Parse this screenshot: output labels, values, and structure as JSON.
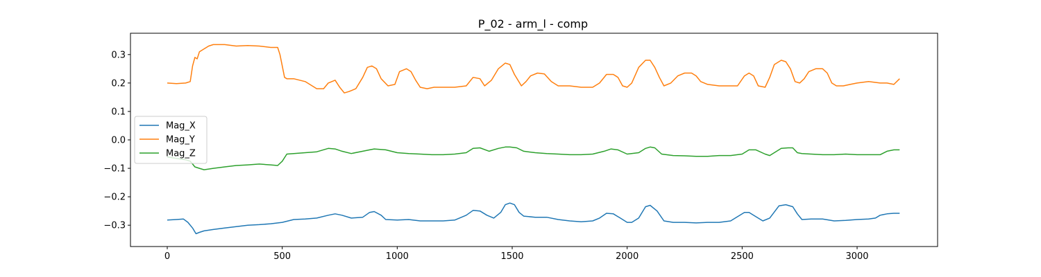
{
  "chart_data": {
    "type": "line",
    "title": "P_02 - arm_l - comp",
    "xlabel": "",
    "ylabel": "",
    "xlim": [
      -160,
      3350
    ],
    "ylim": [
      -0.375,
      0.375
    ],
    "x_ticks": [
      0,
      500,
      1000,
      1500,
      2000,
      2500,
      3000
    ],
    "x_tick_labels": [
      "0",
      "500",
      "1000",
      "1500",
      "2000",
      "2500",
      "3000"
    ],
    "y_ticks": [
      -0.3,
      -0.2,
      -0.1,
      0.0,
      0.1,
      0.2,
      0.3
    ],
    "y_tick_labels": [
      "−0.3",
      "−0.2",
      "−0.1",
      "0.0",
      "0.1",
      "0.2",
      "0.3"
    ],
    "grid": false,
    "legend_position": "center-left",
    "series": [
      {
        "name": "Mag_X",
        "color": "#1f77b4",
        "x": [
          0,
          40,
          70,
          90,
          110,
          125,
          140,
          160,
          200,
          250,
          300,
          350,
          400,
          450,
          500,
          550,
          600,
          650,
          700,
          730,
          760,
          800,
          850,
          880,
          900,
          930,
          950,
          1000,
          1050,
          1100,
          1150,
          1200,
          1250,
          1300,
          1330,
          1360,
          1390,
          1420,
          1450,
          1470,
          1490,
          1510,
          1530,
          1550,
          1600,
          1650,
          1700,
          1750,
          1800,
          1850,
          1880,
          1910,
          1940,
          1970,
          2000,
          2020,
          2050,
          2080,
          2100,
          2130,
          2160,
          2200,
          2250,
          2300,
          2350,
          2400,
          2450,
          2480,
          2510,
          2530,
          2560,
          2590,
          2620,
          2660,
          2690,
          2720,
          2740,
          2760,
          2800,
          2850,
          2900,
          2950,
          3000,
          3050,
          3080,
          3100,
          3130,
          3160,
          3185
        ],
        "y": [
          -0.282,
          -0.28,
          -0.278,
          -0.29,
          -0.31,
          -0.33,
          -0.325,
          -0.32,
          -0.315,
          -0.31,
          -0.305,
          -0.3,
          -0.298,
          -0.295,
          -0.29,
          -0.28,
          -0.278,
          -0.275,
          -0.265,
          -0.26,
          -0.265,
          -0.275,
          -0.272,
          -0.255,
          -0.252,
          -0.265,
          -0.28,
          -0.282,
          -0.28,
          -0.285,
          -0.285,
          -0.285,
          -0.282,
          -0.265,
          -0.248,
          -0.25,
          -0.265,
          -0.275,
          -0.255,
          -0.228,
          -0.222,
          -0.228,
          -0.255,
          -0.268,
          -0.272,
          -0.272,
          -0.28,
          -0.285,
          -0.288,
          -0.285,
          -0.275,
          -0.258,
          -0.26,
          -0.275,
          -0.29,
          -0.29,
          -0.275,
          -0.235,
          -0.23,
          -0.25,
          -0.285,
          -0.29,
          -0.29,
          -0.292,
          -0.29,
          -0.29,
          -0.285,
          -0.27,
          -0.255,
          -0.255,
          -0.27,
          -0.285,
          -0.275,
          -0.232,
          -0.228,
          -0.235,
          -0.26,
          -0.28,
          -0.278,
          -0.278,
          -0.285,
          -0.283,
          -0.28,
          -0.278,
          -0.275,
          -0.265,
          -0.26,
          -0.258,
          -0.258
        ]
      },
      {
        "name": "Mag_Y",
        "color": "#ff7f0e",
        "x": [
          0,
          40,
          80,
          100,
          110,
          120,
          130,
          140,
          160,
          180,
          200,
          250,
          300,
          350,
          400,
          450,
          480,
          490,
          500,
          510,
          520,
          550,
          600,
          650,
          680,
          700,
          730,
          750,
          770,
          790,
          820,
          850,
          870,
          890,
          910,
          930,
          960,
          990,
          1010,
          1040,
          1060,
          1080,
          1100,
          1130,
          1160,
          1200,
          1250,
          1300,
          1330,
          1360,
          1380,
          1410,
          1440,
          1470,
          1490,
          1510,
          1540,
          1560,
          1580,
          1610,
          1640,
          1670,
          1700,
          1750,
          1800,
          1850,
          1880,
          1910,
          1940,
          1960,
          1980,
          2000,
          2020,
          2050,
          2080,
          2100,
          2120,
          2140,
          2160,
          2190,
          2220,
          2250,
          2280,
          2300,
          2320,
          2350,
          2400,
          2450,
          2480,
          2510,
          2530,
          2550,
          2570,
          2600,
          2620,
          2640,
          2670,
          2690,
          2710,
          2730,
          2750,
          2770,
          2790,
          2820,
          2850,
          2870,
          2890,
          2910,
          2940,
          2970,
          3000,
          3050,
          3100,
          3130,
          3160,
          3185
        ],
        "y": [
          0.2,
          0.198,
          0.2,
          0.205,
          0.26,
          0.29,
          0.285,
          0.31,
          0.32,
          0.33,
          0.335,
          0.335,
          0.33,
          0.332,
          0.33,
          0.325,
          0.325,
          0.3,
          0.26,
          0.22,
          0.215,
          0.215,
          0.205,
          0.18,
          0.18,
          0.2,
          0.21,
          0.185,
          0.165,
          0.17,
          0.18,
          0.22,
          0.255,
          0.26,
          0.25,
          0.215,
          0.19,
          0.195,
          0.24,
          0.25,
          0.24,
          0.21,
          0.185,
          0.18,
          0.185,
          0.185,
          0.185,
          0.19,
          0.22,
          0.215,
          0.19,
          0.21,
          0.25,
          0.27,
          0.265,
          0.23,
          0.19,
          0.205,
          0.225,
          0.235,
          0.232,
          0.205,
          0.19,
          0.19,
          0.185,
          0.185,
          0.2,
          0.23,
          0.23,
          0.22,
          0.19,
          0.185,
          0.2,
          0.255,
          0.28,
          0.28,
          0.255,
          0.22,
          0.19,
          0.2,
          0.225,
          0.235,
          0.235,
          0.225,
          0.205,
          0.195,
          0.19,
          0.19,
          0.19,
          0.225,
          0.235,
          0.225,
          0.19,
          0.185,
          0.22,
          0.265,
          0.28,
          0.275,
          0.25,
          0.205,
          0.2,
          0.215,
          0.24,
          0.25,
          0.25,
          0.235,
          0.2,
          0.19,
          0.19,
          0.195,
          0.2,
          0.205,
          0.2,
          0.2,
          0.195,
          0.215
        ]
      },
      {
        "name": "Mag_Z",
        "color": "#2ca02c",
        "x": [
          0,
          40,
          80,
          100,
          110,
          120,
          140,
          160,
          200,
          250,
          300,
          350,
          400,
          450,
          480,
          500,
          520,
          550,
          600,
          650,
          700,
          730,
          760,
          800,
          850,
          880,
          900,
          950,
          1000,
          1050,
          1100,
          1150,
          1200,
          1250,
          1300,
          1330,
          1360,
          1400,
          1440,
          1470,
          1490,
          1520,
          1550,
          1600,
          1650,
          1700,
          1750,
          1800,
          1850,
          1900,
          1930,
          1960,
          2000,
          2050,
          2080,
          2100,
          2120,
          2150,
          2200,
          2250,
          2300,
          2350,
          2400,
          2450,
          2500,
          2530,
          2560,
          2600,
          2620,
          2640,
          2670,
          2700,
          2720,
          2740,
          2760,
          2800,
          2850,
          2900,
          2950,
          3000,
          3050,
          3100,
          3130,
          3160,
          3185
        ],
        "y": [
          -0.06,
          -0.065,
          -0.07,
          -0.075,
          -0.085,
          -0.095,
          -0.1,
          -0.105,
          -0.1,
          -0.095,
          -0.09,
          -0.088,
          -0.085,
          -0.088,
          -0.09,
          -0.075,
          -0.05,
          -0.048,
          -0.045,
          -0.042,
          -0.03,
          -0.032,
          -0.04,
          -0.048,
          -0.04,
          -0.035,
          -0.032,
          -0.035,
          -0.045,
          -0.048,
          -0.05,
          -0.052,
          -0.052,
          -0.05,
          -0.045,
          -0.03,
          -0.028,
          -0.04,
          -0.03,
          -0.025,
          -0.025,
          -0.028,
          -0.04,
          -0.045,
          -0.048,
          -0.05,
          -0.052,
          -0.052,
          -0.05,
          -0.04,
          -0.032,
          -0.035,
          -0.05,
          -0.045,
          -0.03,
          -0.025,
          -0.028,
          -0.05,
          -0.055,
          -0.056,
          -0.058,
          -0.058,
          -0.055,
          -0.055,
          -0.05,
          -0.035,
          -0.035,
          -0.05,
          -0.055,
          -0.045,
          -0.03,
          -0.028,
          -0.028,
          -0.045,
          -0.048,
          -0.05,
          -0.052,
          -0.052,
          -0.05,
          -0.052,
          -0.052,
          -0.052,
          -0.04,
          -0.035,
          -0.035
        ]
      }
    ]
  }
}
